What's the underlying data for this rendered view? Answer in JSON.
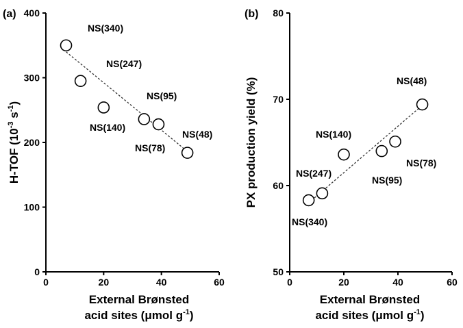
{
  "chart_data": [
    {
      "type": "scatter",
      "panel_label": "(a)",
      "xlabel_line1": "External Brønsted",
      "xlabel_line2": "acid sites (μmol g",
      "xlabel_sup": "-1",
      "xlabel_end": ")",
      "ylabel_main": "H-TOF (10",
      "ylabel_sup1": "-3",
      "ylabel_mid": " s",
      "ylabel_sup2": "-1",
      "ylabel_end": ")",
      "xlim": [
        0,
        60
      ],
      "ylim": [
        0,
        400
      ],
      "xticks": [
        0,
        20,
        40,
        60
      ],
      "yticks": [
        0,
        100,
        200,
        300,
        400
      ],
      "marker_color": "#ffffff",
      "points": [
        {
          "label": "NS(340)",
          "x": 7,
          "y": 350
        },
        {
          "label": "NS(247)",
          "x": 12,
          "y": 295
        },
        {
          "label": "NS(140)",
          "x": 20,
          "y": 254
        },
        {
          "label": "NS(95)",
          "x": 34,
          "y": 236
        },
        {
          "label": "NS(78)",
          "x": 39,
          "y": 228
        },
        {
          "label": "NS(48)",
          "x": 49,
          "y": 184
        }
      ],
      "trendline": {
        "style": "dashed",
        "from": [
          7,
          340
        ],
        "to": [
          49,
          186
        ]
      }
    },
    {
      "type": "scatter",
      "panel_label": "(b)",
      "xlabel_line1": "External Brønsted",
      "xlabel_line2": "acid sites (μmol g",
      "xlabel_sup": "-1",
      "xlabel_end": ")",
      "ylabel": "PX production yield (%)",
      "xlim": [
        0,
        60
      ],
      "ylim": [
        50,
        80
      ],
      "xticks": [
        0,
        20,
        40,
        60
      ],
      "yticks": [
        50,
        60,
        70,
        80
      ],
      "marker_color": "#ffffff",
      "points": [
        {
          "label": "NS(340)",
          "x": 7,
          "y": 58.3
        },
        {
          "label": "NS(247)",
          "x": 12,
          "y": 59.1
        },
        {
          "label": "NS(140)",
          "x": 20,
          "y": 63.6
        },
        {
          "label": "NS(95)",
          "x": 34,
          "y": 64.0
        },
        {
          "label": "NS(78)",
          "x": 39,
          "y": 65.1
        },
        {
          "label": "NS(48)",
          "x": 49,
          "y": 69.4
        }
      ],
      "trendline": {
        "style": "dashed",
        "from": [
          7,
          58.0
        ],
        "to": [
          49,
          69.3
        ]
      }
    }
  ]
}
